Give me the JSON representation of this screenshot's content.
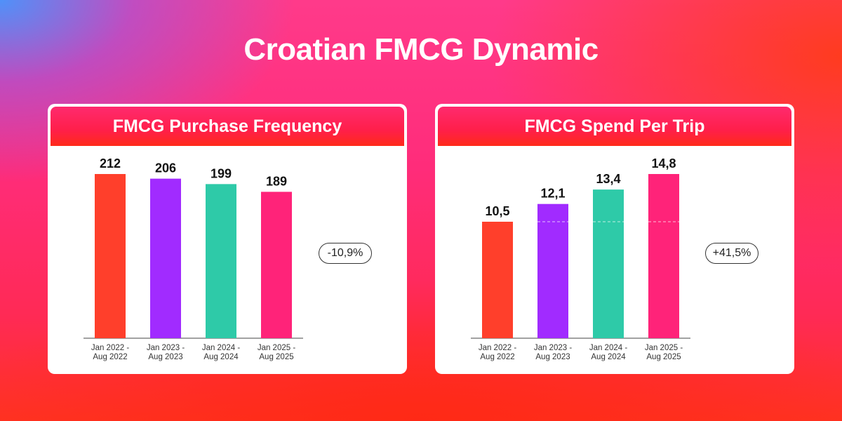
{
  "title": "Croatian FMCG Dynamic",
  "chart_data": [
    {
      "type": "bar",
      "title": "FMCG Purchase Frequency",
      "categories": [
        "Jan 2022 - Aug 2022",
        "Jan 2023 - Aug 2023",
        "Jan 2024 - Aug 2024",
        "Jan 2025 - Aug 2025"
      ],
      "category_lines": [
        [
          "Jan 2022 -",
          "Aug 2022"
        ],
        [
          "Jan 2023 -",
          "Aug 2023"
        ],
        [
          "Jan 2024 -",
          "Aug 2024"
        ],
        [
          "Jan 2025 -",
          "Aug 2025"
        ]
      ],
      "values": [
        212,
        206,
        199,
        189
      ],
      "value_labels": [
        "212",
        "206",
        "199",
        "189"
      ],
      "colors": [
        "#ff3f2b",
        "#a12bff",
        "#2ecaa8",
        "#ff2379"
      ],
      "change_badge": "-10,9%",
      "reference_line": false,
      "grid": false
    },
    {
      "type": "bar",
      "title": "FMCG Spend Per Trip",
      "categories": [
        "Jan 2022 - Aug 2022",
        "Jan 2023 - Aug 2023",
        "Jan 2024 - Aug 2024",
        "Jan 2025 - Aug 2025"
      ],
      "category_lines": [
        [
          "Jan 2022 -",
          "Aug 2022"
        ],
        [
          "Jan 2023 -",
          "Aug 2023"
        ],
        [
          "Jan 2024 -",
          "Aug 2024"
        ],
        [
          "Jan 2025 -",
          "Aug 2025"
        ]
      ],
      "values": [
        10.5,
        12.1,
        13.4,
        14.8
      ],
      "value_labels": [
        "10,5",
        "12,1",
        "13,4",
        "14,8"
      ],
      "colors": [
        "#ff3f2b",
        "#a12bff",
        "#2ecaa8",
        "#ff2379"
      ],
      "change_badge": "+41,5%",
      "reference_line": true,
      "grid": false
    }
  ]
}
